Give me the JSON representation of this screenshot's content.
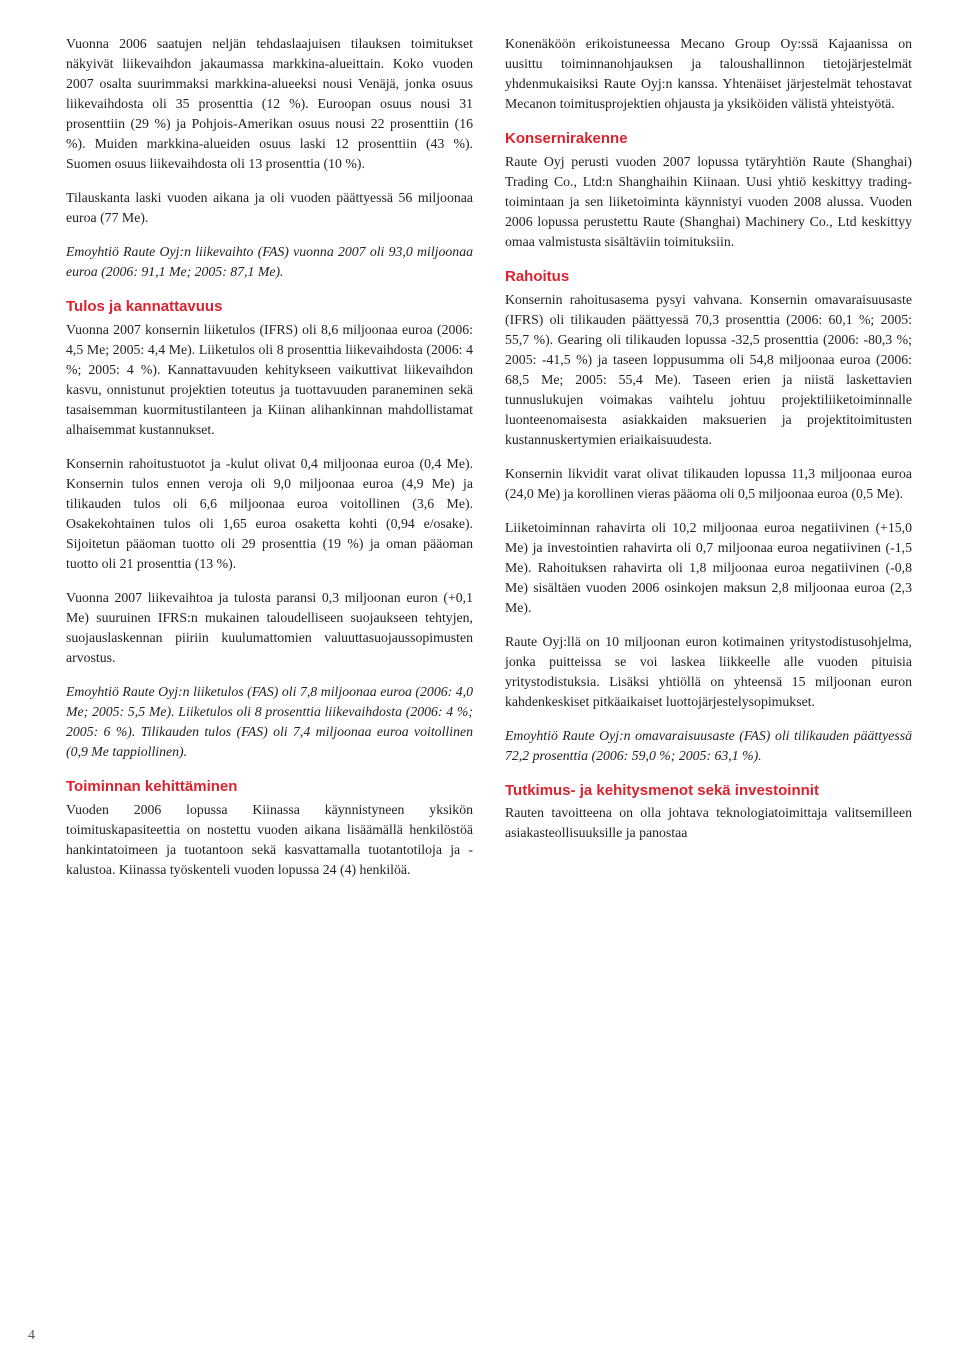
{
  "left": {
    "p1": "Vuonna 2006 saatujen neljän tehdaslaajuisen tilauksen toimitukset näkyivät liikevaihdon jakaumassa markkina-alueittain. Koko vuoden 2007 osalta suurimmaksi markkina-alueeksi nousi Venäjä, jonka osuus liikevaihdosta oli 35 prosenttia (12 %). Euroopan osuus nousi 31 prosenttiin (29 %) ja Pohjois-Amerikan osuus nousi 22 prosenttiin (16 %). Muiden markkina-alueiden osuus laski 12 prosenttiin (43 %). Suomen osuus liikevaihdosta oli 13 prosenttia (10 %).",
    "p2": "Tilauskanta laski vuoden aikana ja oli vuoden päättyessä 56 miljoonaa euroa (77 Me).",
    "p3": "Emoyhtiö Raute Oyj:n liikevaihto (FAS) vuonna 2007 oli 93,0 miljoonaa euroa (2006: 91,1 Me; 2005: 87,1 Me).",
    "h1": "Tulos ja kannattavuus",
    "p4": "Vuonna 2007 konsernin liiketulos (IFRS) oli 8,6 miljoonaa euroa (2006: 4,5 Me; 2005: 4,4 Me). Liiketulos oli 8 prosenttia liikevaihdosta (2006: 4 %; 2005: 4 %). Kannattavuuden kehitykseen vaikuttivat liikevaihdon kasvu, onnistunut projektien toteutus ja tuottavuuden paraneminen sekä tasaisemman kuormitustilanteen ja Kiinan alihankinnan mahdollistamat alhaisemmat kustannukset.",
    "p5": "Konsernin rahoitustuotot ja -kulut olivat 0,4 miljoonaa euroa (0,4 Me). Konsernin tulos ennen veroja oli 9,0 miljoonaa euroa (4,9 Me) ja tilikauden tulos oli 6,6 miljoonaa euroa voitollinen (3,6 Me). Osakekohtainen tulos oli 1,65 euroa osaketta kohti (0,94 e/osake). Sijoitetun pääoman tuotto oli 29 prosenttia (19 %) ja oman pääoman tuotto oli 21 prosenttia (13 %).",
    "p6": "Vuonna 2007 liikevaihtoa ja tulosta paransi 0,3 miljoonan euron (+0,1 Me) suuruinen IFRS:n mukainen taloudelliseen suojaukseen tehtyjen, suojauslaskennan piiriin kuulumattomien valuuttasuojaussopimusten arvostus.",
    "p7": "Emoyhtiö Raute Oyj:n liiketulos (FAS) oli 7,8 miljoonaa euroa (2006: 4,0 Me; 2005: 5,5 Me). Liiketulos oli 8 prosenttia liikevaihdosta (2006: 4 %; 2005: 6 %). Tilikauden tulos (FAS) oli 7,4 miljoonaa euroa voitollinen (0,9 Me tappiollinen).",
    "h2": "Toiminnan kehittäminen",
    "p8": "Vuoden 2006 lopussa Kiinassa käynnistyneen yksikön toimituskapasiteettia on nostettu vuoden aikana lisäämällä henkilöstöä hankintatoimeen ja tuotantoon sekä kasvattamalla tuotantotiloja ja -kalustoa. Kiinassa työskenteli vuoden lopussa 24 (4) henkilöä."
  },
  "right": {
    "p1": "Konenäköön erikoistuneessa Mecano Group Oy:ssä Kajaanissa on uusittu toiminnanohjauksen ja taloushallinnon tietojärjestelmät yhdenmukaisiksi Raute Oyj:n kanssa. Yhtenäiset järjestelmät tehostavat Mecanon toimitusprojektien ohjausta ja yksiköiden välistä yhteistyötä.",
    "h1": "Konsernirakenne",
    "p2": "Raute Oyj perusti vuoden 2007 lopussa tytäryhtiön Raute (Shanghai) Trading Co., Ltd:n Shanghaihin Kiinaan. Uusi yhtiö keskittyy trading-toimintaan ja sen liiketoiminta käynnistyi vuoden 2008 alussa. Vuoden 2006 lopussa perustettu Raute (Shanghai) Machinery Co., Ltd keskittyy omaa valmistusta sisältäviin toimituksiin.",
    "h2": "Rahoitus",
    "p3": "Konsernin rahoitusasema pysyi vahvana. Konsernin omavaraisuusaste (IFRS) oli tilikauden päättyessä 70,3 prosenttia (2006: 60,1 %; 2005: 55,7 %). Gearing oli tilikauden lopussa -32,5 prosenttia (2006: -80,3 %; 2005: -41,5 %) ja taseen loppusumma oli 54,8 miljoonaa euroa (2006: 68,5 Me; 2005: 55,4 Me). Taseen erien ja niistä laskettavien tunnuslukujen voimakas vaihtelu johtuu projektiliiketoiminnalle luonteenomaisesta asiakkaiden maksuerien ja projektitoimitusten kustannuskertymien eriaikaisuudesta.",
    "p4": "Konsernin likvidit varat olivat tilikauden lopussa 11,3 miljoonaa euroa (24,0 Me) ja korollinen vieras pääoma oli 0,5 miljoonaa euroa (0,5 Me).",
    "p5": "Liiketoiminnan rahavirta oli 10,2 miljoonaa euroa negatiivinen (+15,0 Me) ja investointien rahavirta oli 0,7 miljoonaa euroa negatiivinen (-1,5 Me). Rahoituksen rahavirta oli 1,8 miljoonaa euroa negatiivinen (-0,8 Me) sisältäen vuoden 2006 osinkojen maksun 2,8 miljoonaa euroa (2,3 Me).",
    "p6": "Raute Oyj:llä on 10 miljoonan euron kotimainen yritystodistusohjelma, jonka puitteissa se voi laskea liikkeelle alle vuoden pituisia yritystodistuksia. Lisäksi yhtiöllä on yhteensä 15 miljoonan euron kahdenkeskiset pitkäaikaiset luottojärjestelysopimukset.",
    "p7": "Emoyhtiö Raute Oyj:n omavaraisuusaste (FAS) oli tilikauden päättyessä 72,2 prosenttia (2006: 59,0 %; 2005: 63,1 %).",
    "h3": "Tutkimus- ja kehitysmenot sekä investoinnit",
    "p8": "Rauten tavoitteena on olla johtava teknologiatoimittaja valitsemilleen asiakasteollisuuksille ja panostaa"
  },
  "pagenum": "4"
}
